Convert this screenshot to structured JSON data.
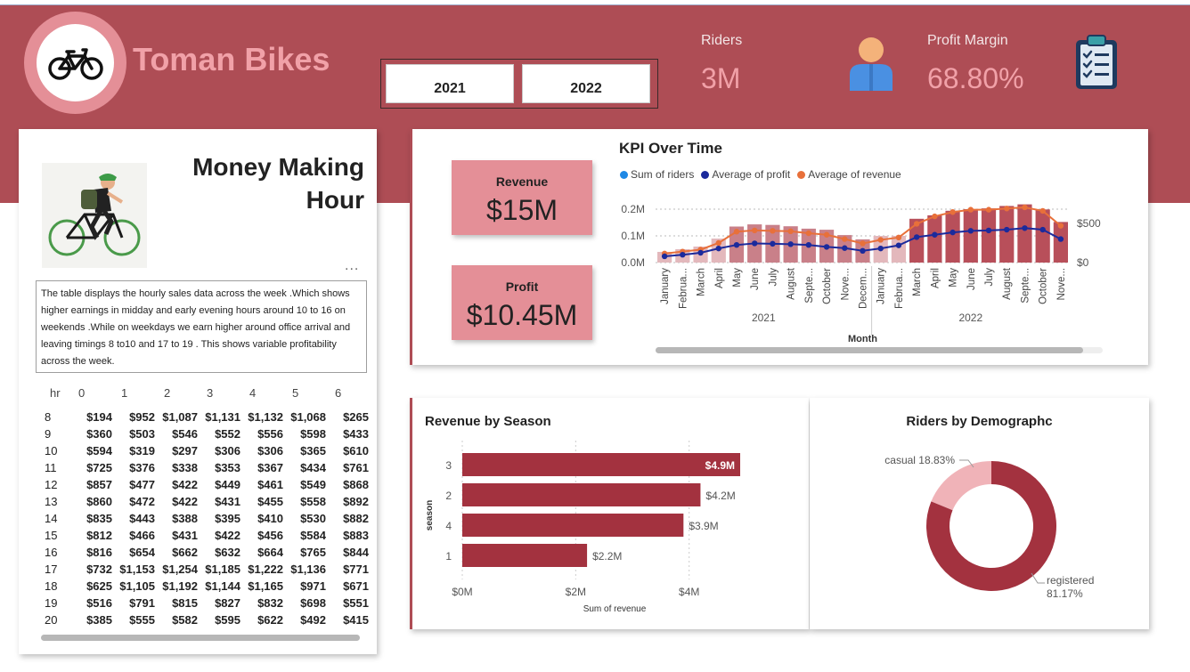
{
  "brand": {
    "name": "Toman Bikes",
    "logo": "bicycle-icon"
  },
  "years": [
    "2021",
    "2022"
  ],
  "kpis": {
    "riders": {
      "label": "Riders",
      "value": "3M",
      "icon": "person-icon"
    },
    "profit_margin": {
      "label": "Profit Margin",
      "value": "68.80%",
      "icon": "clipboard-checklist-icon"
    }
  },
  "money_hour": {
    "title": "Money Making Hour",
    "illustration": "cyclist-illustration",
    "more": "...",
    "description": "The table displays the hourly sales data across the week .Which shows higher earnings in midday and early evening hours around 10 to 16 on weekends .While on weekdays  we earn higher around office arrival and leaving timings 8 to10 and 17 to 19  . This shows variable profitability across the week.",
    "columns": [
      "hr",
      "0",
      "1",
      "2",
      "3",
      "4",
      "5",
      "6"
    ],
    "rows": [
      [
        "8",
        "$194",
        "$952",
        "$1,087",
        "$1,131",
        "$1,132",
        "$1,068",
        "$265"
      ],
      [
        "9",
        "$360",
        "$503",
        "$546",
        "$552",
        "$556",
        "$598",
        "$433"
      ],
      [
        "10",
        "$594",
        "$319",
        "$297",
        "$306",
        "$306",
        "$365",
        "$610"
      ],
      [
        "11",
        "$725",
        "$376",
        "$338",
        "$353",
        "$367",
        "$434",
        "$761"
      ],
      [
        "12",
        "$857",
        "$477",
        "$422",
        "$449",
        "$461",
        "$549",
        "$868"
      ],
      [
        "13",
        "$860",
        "$472",
        "$422",
        "$431",
        "$455",
        "$558",
        "$892"
      ],
      [
        "14",
        "$835",
        "$443",
        "$388",
        "$395",
        "$410",
        "$530",
        "$882"
      ],
      [
        "15",
        "$812",
        "$466",
        "$431",
        "$422",
        "$456",
        "$584",
        "$883"
      ],
      [
        "16",
        "$816",
        "$654",
        "$662",
        "$632",
        "$664",
        "$765",
        "$844"
      ],
      [
        "17",
        "$732",
        "$1,153",
        "$1,254",
        "$1,185",
        "$1,222",
        "$1,136",
        "$771"
      ],
      [
        "18",
        "$625",
        "$1,105",
        "$1,192",
        "$1,144",
        "$1,165",
        "$971",
        "$671"
      ],
      [
        "19",
        "$516",
        "$791",
        "$815",
        "$827",
        "$832",
        "$698",
        "$551"
      ],
      [
        "20",
        "$385",
        "$555",
        "$582",
        "$595",
        "$622",
        "$492",
        "$415"
      ]
    ]
  },
  "revenue_card": {
    "label": "Revenue",
    "value": "$15M"
  },
  "profit_card": {
    "label": "Profit",
    "value": "$10.45M"
  },
  "colors": {
    "banner": "#ae4d55",
    "accent_light": "#e48f97",
    "riders_bar": "#b84f5a",
    "profit_line": "#1b2a9c",
    "revenue_line": "#e8703a",
    "season_bar": "#a3323f",
    "casual": "#f0b3b8",
    "registered": "#a3323f"
  },
  "chart_data": [
    {
      "type": "bar",
      "title": "KPI Over Time",
      "legend": [
        "Sum of riders",
        "Average of profit",
        "Average of revenue"
      ],
      "xlabel": "Month",
      "year_groups": [
        "2021",
        "2022"
      ],
      "categories": [
        "January",
        "Februa...",
        "March",
        "April",
        "May",
        "June",
        "July",
        "August",
        "Septe...",
        "October",
        "Nove...",
        "Decem...",
        "January",
        "Februa...",
        "March",
        "April",
        "May",
        "June",
        "July",
        "August",
        "Septe...",
        "October",
        "Nove..."
      ],
      "y_ticks": [
        "0.0M",
        "0.1M",
        "0.2M"
      ],
      "y2_ticks": [
        "$0",
        "$500"
      ],
      "ylim": [
        0,
        0.22
      ],
      "y2lim": [
        0,
        750
      ],
      "series": [
        {
          "name": "Sum of riders",
          "type": "bar",
          "values": [
            0.04,
            0.05,
            0.06,
            0.09,
            0.135,
            0.143,
            0.141,
            0.136,
            0.127,
            0.123,
            0.103,
            0.087,
            0.1,
            0.1,
            0.164,
            0.177,
            0.194,
            0.2,
            0.203,
            0.212,
            0.218,
            0.199,
            0.152
          ]
        },
        {
          "name": "Average of profit",
          "type": "line",
          "values": [
            80,
            100,
            125,
            180,
            225,
            245,
            240,
            235,
            225,
            200,
            185,
            150,
            180,
            220,
            325,
            355,
            385,
            405,
            410,
            420,
            440,
            420,
            300
          ]
        },
        {
          "name": "Average of revenue",
          "type": "line",
          "values": [
            115,
            140,
            165,
            250,
            395,
            410,
            405,
            400,
            375,
            355,
            300,
            245,
            290,
            320,
            495,
            590,
            645,
            675,
            675,
            690,
            705,
            660,
            470
          ]
        }
      ]
    },
    {
      "type": "bar",
      "title": "Revenue by Season",
      "xlabel": "Sum of revenue",
      "ylabel": "season",
      "categories": [
        "3",
        "2",
        "4",
        "1"
      ],
      "values": [
        4.9,
        4.2,
        3.9,
        2.2
      ],
      "labels": [
        "$4.9M",
        "$4.2M",
        "$3.9M",
        "$2.2M"
      ],
      "x_ticks": [
        "$0M",
        "$2M",
        "$4M"
      ],
      "xlim": [
        0,
        4.9
      ]
    },
    {
      "type": "pie",
      "title": "Riders by Demographc",
      "slices": [
        {
          "name": "casual",
          "value": 18.83,
          "label": "18.83%"
        },
        {
          "name": "registered",
          "value": 81.17,
          "label": "81.17%"
        }
      ]
    }
  ]
}
